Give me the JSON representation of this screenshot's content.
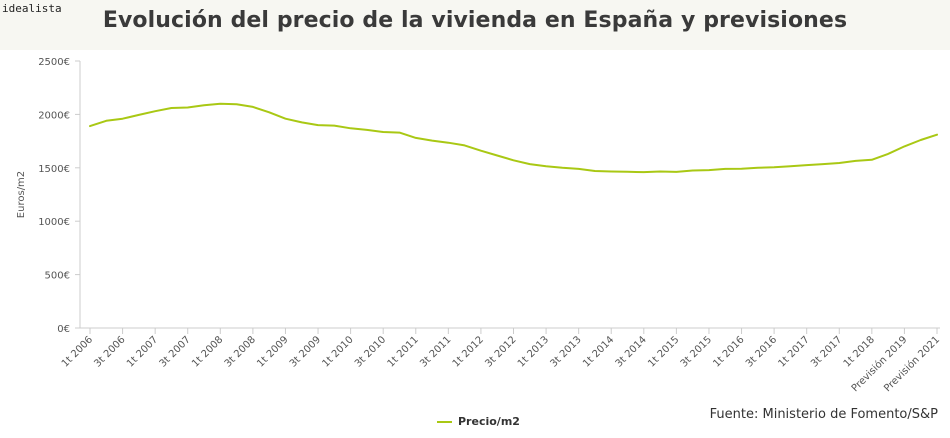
{
  "brand": {
    "logo_text": "idealista"
  },
  "header": {
    "title": "Evolución del precio de la vivienda en España y previsiones"
  },
  "source": "Fuente: Ministerio de Fomento/S&P",
  "colors": {
    "line": "#a9c814",
    "axis": "#cccccc",
    "text": "#555555"
  },
  "chart_data": {
    "type": "line",
    "title": "Evolución del precio de la vivienda en España y previsiones",
    "xlabel": "",
    "ylabel": "Euros/m2",
    "ylim": [
      0,
      2500
    ],
    "y_ticks": [
      "0€",
      "500€",
      "1000€",
      "1500€",
      "2000€",
      "2500€"
    ],
    "grid": false,
    "legend_position": "bottom",
    "x_tick_labels": [
      "1t 2006",
      "3t 2006",
      "1t 2007",
      "3t 2007",
      "1t 2008",
      "3t 2008",
      "1t 2009",
      "3t 2009",
      "1t 2010",
      "3t 2010",
      "1t 2011",
      "3t 2011",
      "1t 2012",
      "3t 2012",
      "1t 2013",
      "3t 2013",
      "1t 2014",
      "3t 2014",
      "1t 2015",
      "3t 2015",
      "1t 2016",
      "3t 2016",
      "1t 2017",
      "3t 2017",
      "1t 2018",
      "Previsión 2019",
      "Previsión 2021"
    ],
    "series": [
      {
        "name": "Precio/m2",
        "values": [
          1890,
          1940,
          1960,
          1995,
          2030,
          2060,
          2065,
          2085,
          2100,
          2095,
          2070,
          2020,
          1960,
          1925,
          1900,
          1895,
          1870,
          1855,
          1835,
          1830,
          1780,
          1755,
          1735,
          1710,
          1660,
          1615,
          1570,
          1535,
          1515,
          1500,
          1490,
          1470,
          1465,
          1463,
          1460,
          1465,
          1462,
          1475,
          1478,
          1490,
          1492,
          1500,
          1505,
          1515,
          1525,
          1535,
          1545,
          1565,
          1575,
          1630,
          1700,
          1760,
          1810
        ]
      }
    ]
  }
}
